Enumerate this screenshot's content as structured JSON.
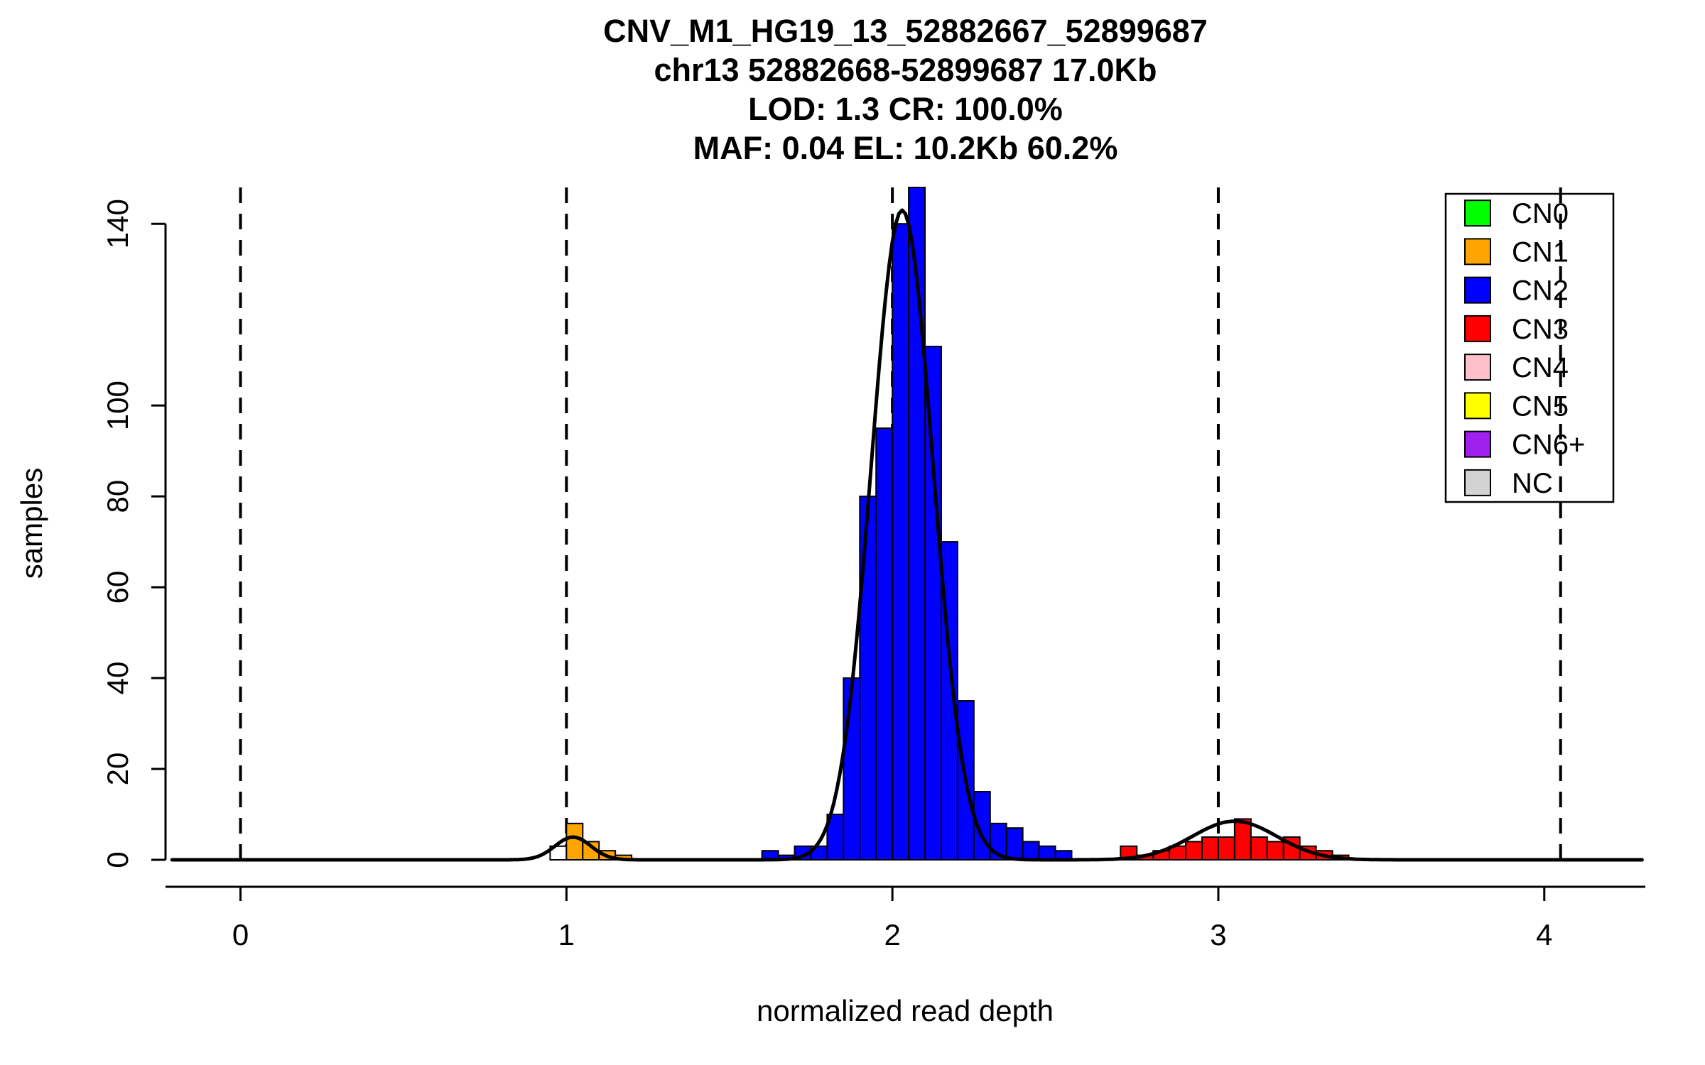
{
  "page": {
    "background": "#FFFFFF"
  },
  "chart_data": {
    "type": "bar",
    "subtype": "histogram-with-density-curve",
    "title_lines": [
      "CNV_M1_HG19_13_52882667_52899687",
      "chr13 52882668-52899687 17.0Kb",
      "LOD: 1.3 CR: 100.0%",
      "MAF: 0.04 EL: 10.2Kb 60.2%"
    ],
    "xlabel": "normalized read depth",
    "ylabel": "samples",
    "xlim": [
      -0.23,
      4.31
    ],
    "ylim": [
      0,
      148
    ],
    "x_ticks": [
      0,
      1,
      2,
      3,
      4
    ],
    "y_ticks": [
      0,
      20,
      40,
      60,
      80,
      100,
      140
    ],
    "grid": "off",
    "dashed_vlines": [
      0,
      1,
      2,
      3,
      4.05
    ],
    "bin_width": 0.05,
    "bars": [
      {
        "x": 0.95,
        "h": 3,
        "color": "#FFFFFF"
      },
      {
        "x": 1.0,
        "h": 8,
        "cn": "CN1",
        "color": "#FFA500"
      },
      {
        "x": 1.05,
        "h": 4,
        "cn": "CN1",
        "color": "#FFA500"
      },
      {
        "x": 1.1,
        "h": 2,
        "cn": "CN1",
        "color": "#FFA500"
      },
      {
        "x": 1.15,
        "h": 1,
        "cn": "CN1",
        "color": "#FFA500"
      },
      {
        "x": 1.6,
        "h": 2,
        "cn": "CN2",
        "color": "#0000FF"
      },
      {
        "x": 1.65,
        "h": 1,
        "cn": "CN2",
        "color": "#0000FF"
      },
      {
        "x": 1.7,
        "h": 3,
        "cn": "CN2",
        "color": "#0000FF"
      },
      {
        "x": 1.75,
        "h": 3,
        "cn": "CN2",
        "color": "#0000FF"
      },
      {
        "x": 1.8,
        "h": 10,
        "cn": "CN2",
        "color": "#0000FF"
      },
      {
        "x": 1.85,
        "h": 40,
        "cn": "CN2",
        "color": "#0000FF"
      },
      {
        "x": 1.9,
        "h": 80,
        "cn": "CN2",
        "color": "#0000FF"
      },
      {
        "x": 1.95,
        "h": 95,
        "cn": "CN2",
        "color": "#0000FF"
      },
      {
        "x": 2.0,
        "h": 140,
        "cn": "CN2",
        "color": "#0000FF"
      },
      {
        "x": 2.05,
        "h": 148,
        "cn": "CN2",
        "color": "#0000FF"
      },
      {
        "x": 2.1,
        "h": 113,
        "cn": "CN2",
        "color": "#0000FF"
      },
      {
        "x": 2.15,
        "h": 70,
        "cn": "CN2",
        "color": "#0000FF"
      },
      {
        "x": 2.2,
        "h": 35,
        "cn": "CN2",
        "color": "#0000FF"
      },
      {
        "x": 2.25,
        "h": 15,
        "cn": "CN2",
        "color": "#0000FF"
      },
      {
        "x": 2.3,
        "h": 8,
        "cn": "CN2",
        "color": "#0000FF"
      },
      {
        "x": 2.35,
        "h": 7,
        "cn": "CN2",
        "color": "#0000FF"
      },
      {
        "x": 2.4,
        "h": 4,
        "cn": "CN2",
        "color": "#0000FF"
      },
      {
        "x": 2.45,
        "h": 3,
        "cn": "CN2",
        "color": "#0000FF"
      },
      {
        "x": 2.5,
        "h": 2,
        "cn": "CN2",
        "color": "#0000FF"
      },
      {
        "x": 2.7,
        "h": 3,
        "cn": "CN3",
        "color": "#FF0000"
      },
      {
        "x": 2.75,
        "h": 1,
        "cn": "CN3",
        "color": "#FF0000"
      },
      {
        "x": 2.8,
        "h": 2,
        "cn": "CN3",
        "color": "#FF0000"
      },
      {
        "x": 2.85,
        "h": 3,
        "cn": "CN3",
        "color": "#FF0000"
      },
      {
        "x": 2.9,
        "h": 4,
        "cn": "CN3",
        "color": "#FF0000"
      },
      {
        "x": 2.95,
        "h": 5,
        "cn": "CN3",
        "color": "#FF0000"
      },
      {
        "x": 3.0,
        "h": 5,
        "cn": "CN3",
        "color": "#FF0000"
      },
      {
        "x": 3.05,
        "h": 9,
        "cn": "CN3",
        "color": "#FF0000"
      },
      {
        "x": 3.1,
        "h": 5,
        "cn": "CN3",
        "color": "#FF0000"
      },
      {
        "x": 3.15,
        "h": 4,
        "cn": "CN3",
        "color": "#FF0000"
      },
      {
        "x": 3.2,
        "h": 5,
        "cn": "CN3",
        "color": "#FF0000"
      },
      {
        "x": 3.25,
        "h": 3,
        "cn": "CN3",
        "color": "#FF0000"
      },
      {
        "x": 3.3,
        "h": 2,
        "cn": "CN3",
        "color": "#FF0000"
      },
      {
        "x": 3.35,
        "h": 1,
        "cn": "CN3",
        "color": "#FF0000"
      }
    ],
    "density_components": [
      {
        "mean": 1.02,
        "sd": 0.055,
        "amp": 5
      },
      {
        "mean": 2.03,
        "sd": 0.095,
        "amp": 143
      },
      {
        "mean": 3.05,
        "sd": 0.13,
        "amp": 8.5
      }
    ],
    "legend": {
      "position": "top-right",
      "entries": [
        {
          "label": "CN0",
          "color": "#00FF00"
        },
        {
          "label": "CN1",
          "color": "#FFA500"
        },
        {
          "label": "CN2",
          "color": "#0000FF"
        },
        {
          "label": "CN3",
          "color": "#FF0000"
        },
        {
          "label": "CN4",
          "color": "#FFC0CB"
        },
        {
          "label": "CN5",
          "color": "#FFFF00"
        },
        {
          "label": "CN6+",
          "color": "#A020F0"
        },
        {
          "label": "NC",
          "color": "#D3D3D3"
        }
      ]
    },
    "colors": {
      "axis": "#000000",
      "curve": "#000000",
      "bar_stroke": "#000000",
      "dashed_line": "#000000"
    }
  }
}
